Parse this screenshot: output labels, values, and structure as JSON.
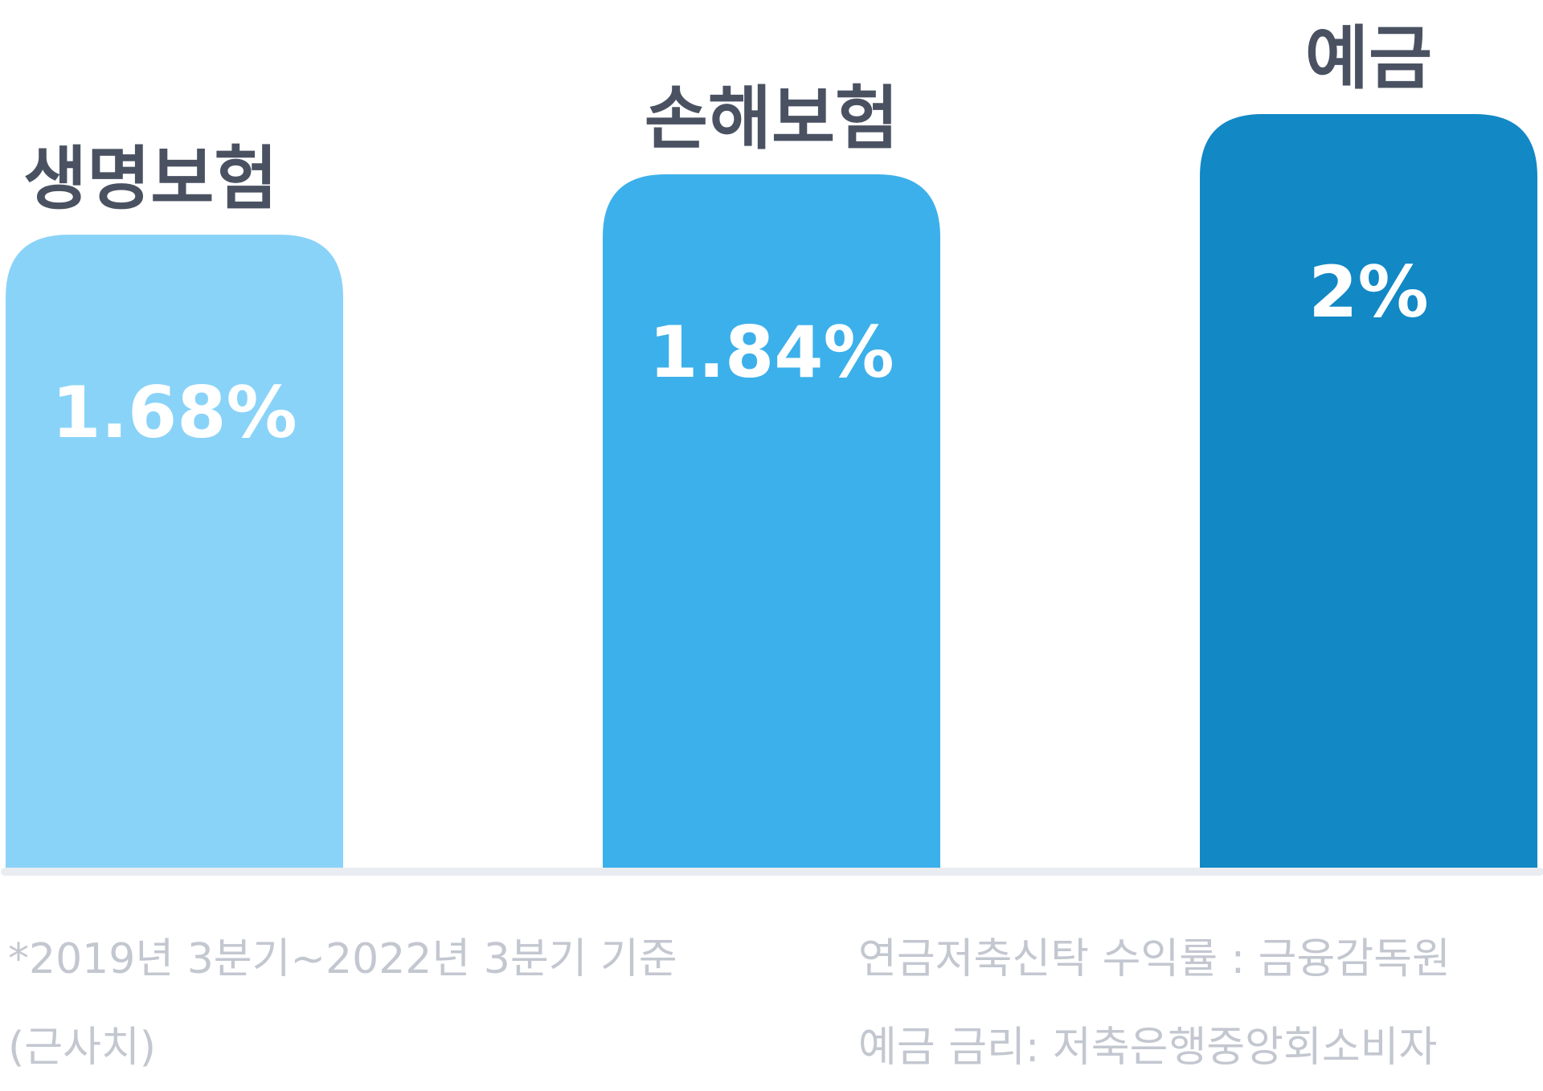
{
  "chart_data": {
    "type": "bar",
    "categories": [
      "생명보험",
      "손해보험",
      "예금"
    ],
    "values": [
      1.68,
      1.84,
      2
    ],
    "value_labels": [
      "1.68%",
      "1.84%",
      "2%"
    ],
    "colors": [
      "#8ad3f8",
      "#3cb0ea",
      "#1288c5"
    ],
    "axis_color": "#e9ecf1",
    "label_color": "#4a5262",
    "value_label_color": "#ffffff",
    "ylim": [
      0,
      2
    ],
    "grid": false,
    "legend": "none"
  },
  "footnotes": {
    "period": "*2019년 3분기~2022년 3분기 기준",
    "approx": "(근사치)",
    "source_trust": "연금저축신탁 수익률 : 금융감독원",
    "source_deposit": "예금 금리: 저축은행중앙회소비자"
  }
}
